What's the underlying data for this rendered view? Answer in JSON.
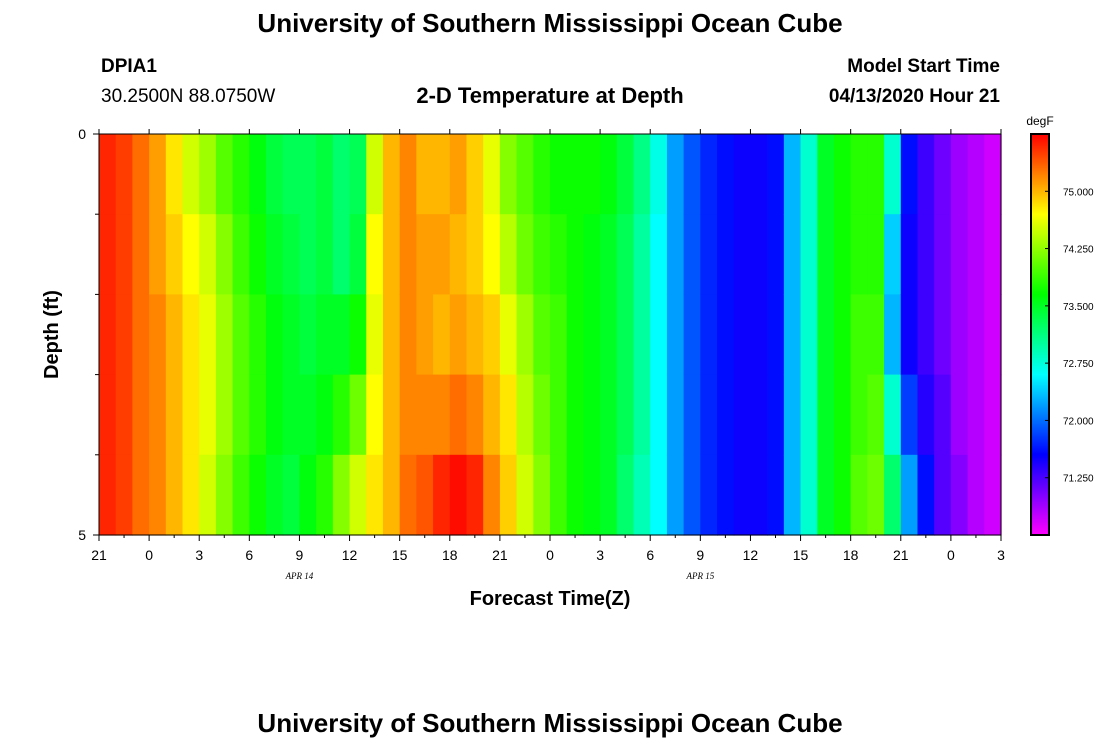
{
  "header": {
    "title": "University of Southern Mississippi Ocean Cube",
    "station_id": "DPIA1",
    "coordinates": "30.2500N 88.0750W",
    "subtitle": "2-D Temperature at Depth",
    "model_start_label": "Model Start Time",
    "model_start_value": "04/13/2020 Hour 21"
  },
  "footer": {
    "title": "University of Southern Mississippi Ocean Cube"
  },
  "chart_data": {
    "type": "heatmap",
    "title": "2-D Temperature at Depth",
    "xlabel": "Forecast Time(Z)",
    "ylabel": "Depth (ft)",
    "x_tick_labels": [
      "21",
      "0",
      "3",
      "6",
      "9",
      "12",
      "15",
      "18",
      "21",
      "0",
      "3",
      "6",
      "9",
      "12",
      "15",
      "18",
      "21",
      "0",
      "3"
    ],
    "x_date_labels": [
      {
        "label": "APR 14",
        "hour_index": 12
      },
      {
        "label": "APR 15",
        "hour_index": 36
      }
    ],
    "y_tick_labels": [
      "0",
      "5"
    ],
    "ylim": [
      0,
      5
    ],
    "hours": 54,
    "depth_levels": 5,
    "colorbar": {
      "unit": "degF",
      "min": 70.5,
      "max": 75.75,
      "ticks": [
        "75.000",
        "74.250",
        "73.500",
        "72.750",
        "72.000",
        "71.250"
      ],
      "tick_values": [
        75.0,
        74.25,
        73.5,
        72.75,
        72.0,
        71.25
      ]
    },
    "values": [
      [
        75.6,
        75.6,
        75.6,
        75.6,
        75.6
      ],
      [
        75.5,
        75.5,
        75.5,
        75.5,
        75.5
      ],
      [
        75.3,
        75.3,
        75.3,
        75.3,
        75.3
      ],
      [
        75.1,
        75.1,
        75.2,
        75.2,
        75.2
      ],
      [
        74.8,
        74.9,
        75.0,
        75.0,
        75.0
      ],
      [
        74.5,
        74.7,
        74.8,
        74.8,
        74.8
      ],
      [
        74.3,
        74.5,
        74.6,
        74.6,
        74.5
      ],
      [
        74.0,
        74.2,
        74.3,
        74.3,
        74.2
      ],
      [
        73.8,
        73.9,
        74.0,
        74.0,
        73.9
      ],
      [
        73.6,
        73.7,
        73.8,
        73.8,
        73.7
      ],
      [
        73.4,
        73.5,
        73.6,
        73.6,
        73.5
      ],
      [
        73.3,
        73.4,
        73.5,
        73.5,
        73.4
      ],
      [
        73.3,
        73.3,
        73.4,
        73.5,
        73.6
      ],
      [
        73.4,
        73.4,
        73.5,
        73.6,
        73.8
      ],
      [
        73.2,
        73.2,
        73.5,
        73.8,
        74.2
      ],
      [
        73.3,
        73.4,
        73.7,
        74.1,
        74.5
      ],
      [
        74.5,
        74.7,
        74.6,
        74.7,
        74.8
      ],
      [
        75.0,
        75.0,
        75.0,
        75.0,
        75.0
      ],
      [
        75.2,
        75.2,
        75.2,
        75.2,
        75.3
      ],
      [
        75.0,
        75.1,
        75.1,
        75.2,
        75.4
      ],
      [
        75.0,
        75.1,
        75.0,
        75.2,
        75.6
      ],
      [
        75.1,
        75.0,
        75.1,
        75.3,
        75.7
      ],
      [
        74.9,
        74.9,
        75.0,
        75.2,
        75.6
      ],
      [
        74.6,
        74.7,
        74.9,
        75.0,
        75.2
      ],
      [
        74.2,
        74.4,
        74.6,
        74.8,
        74.9
      ],
      [
        74.0,
        74.1,
        74.3,
        74.4,
        74.5
      ],
      [
        73.8,
        73.9,
        74.0,
        74.1,
        74.2
      ],
      [
        73.7,
        73.8,
        73.9,
        73.9,
        73.9
      ],
      [
        73.7,
        73.7,
        73.7,
        73.7,
        73.7
      ],
      [
        73.7,
        73.6,
        73.6,
        73.6,
        73.6
      ],
      [
        73.6,
        73.5,
        73.5,
        73.5,
        73.5
      ],
      [
        73.4,
        73.3,
        73.3,
        73.3,
        73.2
      ],
      [
        73.1,
        73.0,
        73.0,
        73.0,
        72.9
      ],
      [
        72.7,
        72.6,
        72.6,
        72.6,
        72.6
      ],
      [
        72.2,
        72.2,
        72.2,
        72.2,
        72.2
      ],
      [
        71.9,
        71.9,
        71.9,
        71.9,
        71.9
      ],
      [
        71.7,
        71.7,
        71.7,
        71.7,
        71.7
      ],
      [
        71.6,
        71.6,
        71.6,
        71.6,
        71.6
      ],
      [
        71.5,
        71.5,
        71.5,
        71.5,
        71.5
      ],
      [
        71.5,
        71.5,
        71.5,
        71.5,
        71.5
      ],
      [
        71.6,
        71.6,
        71.6,
        71.6,
        71.6
      ],
      [
        72.3,
        72.3,
        72.3,
        72.3,
        72.3
      ],
      [
        72.8,
        72.8,
        72.8,
        72.8,
        72.8
      ],
      [
        73.5,
        73.5,
        73.5,
        73.5,
        73.5
      ],
      [
        73.7,
        73.7,
        73.7,
        73.7,
        73.7
      ],
      [
        73.8,
        73.8,
        73.9,
        73.9,
        74.0
      ],
      [
        73.8,
        73.8,
        73.9,
        74.0,
        74.1
      ],
      [
        72.8,
        72.4,
        72.3,
        72.8,
        73.2
      ],
      [
        71.6,
        71.5,
        71.5,
        71.8,
        72.2
      ],
      [
        71.3,
        71.3,
        71.3,
        71.4,
        71.6
      ],
      [
        71.1,
        71.1,
        71.1,
        71.2,
        71.2
      ],
      [
        70.9,
        70.9,
        70.9,
        70.9,
        71.0
      ],
      [
        70.8,
        70.8,
        70.8,
        70.8,
        70.8
      ],
      [
        70.7,
        70.7,
        70.7,
        70.7,
        70.7
      ]
    ]
  }
}
